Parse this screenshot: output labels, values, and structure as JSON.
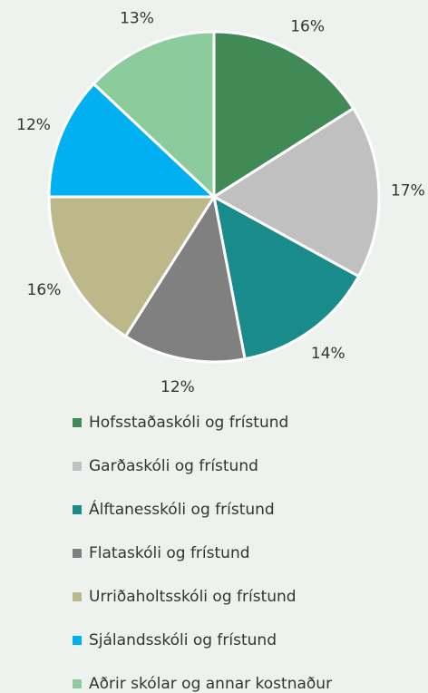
{
  "chart_data": {
    "type": "pie",
    "categories": [
      "Hofsstaðaskóli og frístund",
      "Garðaskóli og frístund",
      "Álftanesskóli og frístund",
      "Flataskóli og frístund",
      "Urriðaholtsskóli og frístund",
      "Sjálandsskóli og frístund",
      "Aðrir skólar og annar kostnaður"
    ],
    "values": [
      16,
      17,
      14,
      12,
      16,
      12,
      13
    ],
    "value_labels": [
      "16%",
      "17%",
      "14%",
      "12%",
      "16%",
      "12%",
      "13%"
    ],
    "colors": [
      "#3f8a55",
      "#c0c0c0",
      "#1a8b8b",
      "#808080",
      "#bdb88a",
      "#00b0f0",
      "#8ccb9b"
    ],
    "legend": "bottom"
  }
}
